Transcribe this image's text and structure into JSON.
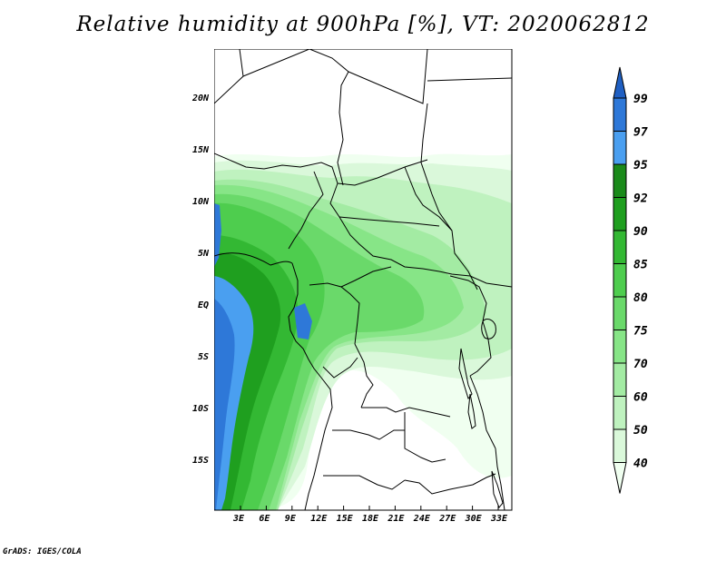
{
  "title": "Relative humidity at 900hPa [%], VT: 2020062812",
  "credit": "GrADS: IGES/COLA",
  "map": {
    "lat_ticks": [
      "20N",
      "15N",
      "10N",
      "5N",
      "EQ",
      "5S",
      "10S",
      "15S"
    ],
    "lon_ticks": [
      "3E",
      "6E",
      "9E",
      "12E",
      "15E",
      "18E",
      "21E",
      "24E",
      "27E",
      "30E",
      "33E"
    ]
  },
  "colorbar": {
    "levels": [
      "40",
      "50",
      "60",
      "70",
      "75",
      "80",
      "85",
      "90",
      "92",
      "95",
      "97",
      "99"
    ],
    "colors": [
      "#f0fff0",
      "#daf8da",
      "#bff2bf",
      "#a3eba3",
      "#87e587",
      "#6ad96a",
      "#4ecd4e",
      "#33b833",
      "#1f9f1f",
      "#1a8a1a",
      "#4a9ff0",
      "#2e78d8",
      "#1f5fc2"
    ]
  },
  "chart_data": {
    "type": "heatmap",
    "title": "Relative humidity at 900hPa [%], VT: 2020062812",
    "xlabel": "",
    "ylabel": "",
    "x_ticks": [
      "3E",
      "6E",
      "9E",
      "12E",
      "15E",
      "18E",
      "21E",
      "24E",
      "27E",
      "30E",
      "33E"
    ],
    "y_ticks": [
      "20N",
      "15N",
      "10N",
      "5N",
      "EQ",
      "5S",
      "10S",
      "15S"
    ],
    "xlim": [
      0,
      34
    ],
    "ylim": [
      -20,
      24
    ],
    "colorbar_levels": [
      40,
      50,
      60,
      70,
      75,
      80,
      85,
      90,
      92,
      95,
      97,
      99
    ]
  }
}
